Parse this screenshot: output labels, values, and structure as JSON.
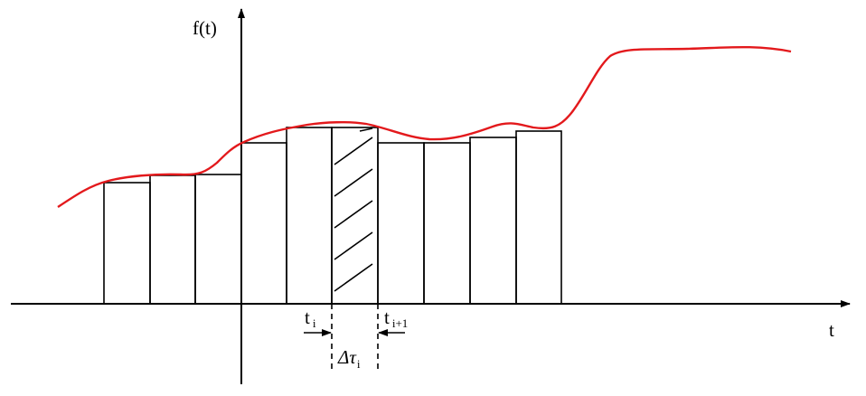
{
  "axes": {
    "y_label": "f(t)",
    "x_label": "t"
  },
  "labels": {
    "t_i": {
      "base": "t",
      "sub": "i"
    },
    "t_i_plus_1": {
      "base": "t",
      "sub": "i+1"
    },
    "delta_tau_i": {
      "base": "Δτ",
      "sub": "i"
    }
  }
}
